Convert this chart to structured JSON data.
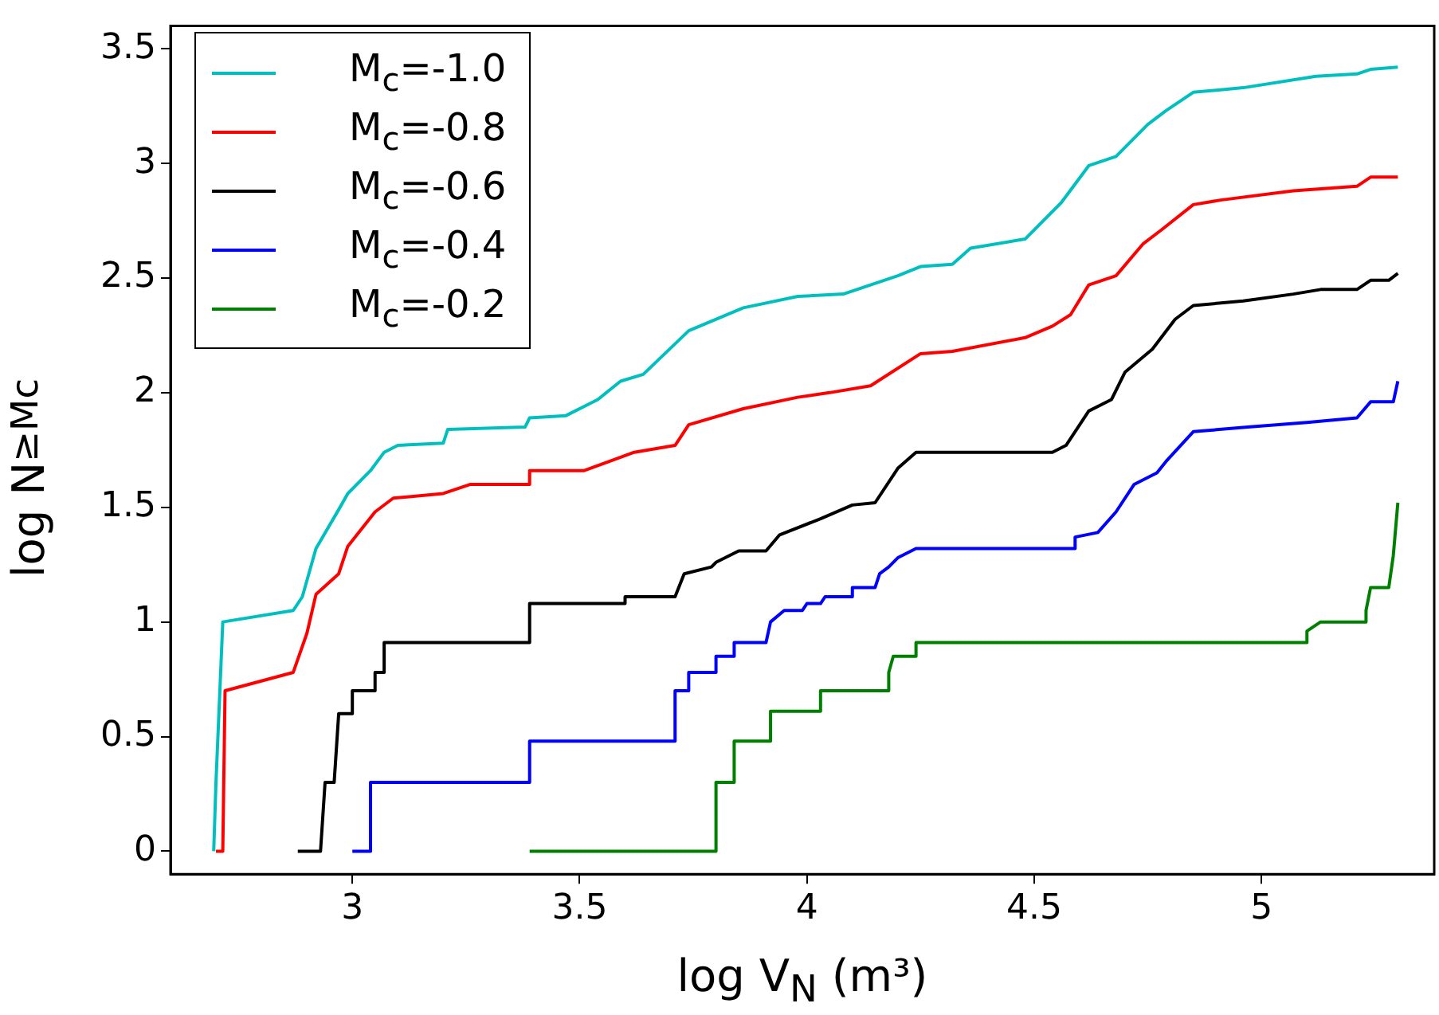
{
  "chart_data": {
    "type": "line",
    "xlabel": "log V$_{N}$ (m³)",
    "ylabel": "log N$_{≥Mc}$",
    "xlim": [
      2.6,
      5.38
    ],
    "ylim": [
      -0.1,
      3.6
    ],
    "xticks": [
      3,
      3.5,
      4,
      4.5,
      5
    ],
    "yticks": [
      0,
      0.5,
      1,
      1.5,
      2,
      2.5,
      3,
      3.5
    ],
    "legend": "top left",
    "marker": "none",
    "line_style": "solid",
    "series": [
      {
        "name": "M$_{c}$=-1.0",
        "color": "#00bfbf",
        "x": [
          2.695,
          2.7,
          2.715,
          2.87,
          2.89,
          2.92,
          2.97,
          2.99,
          3.04,
          3.07,
          3.1,
          3.2,
          3.21,
          3.38,
          3.39,
          3.47,
          3.54,
          3.59,
          3.64,
          3.74,
          3.86,
          3.98,
          4.08,
          4.2,
          4.25,
          4.32,
          4.36,
          4.48,
          4.56,
          4.62,
          4.68,
          4.75,
          4.79,
          4.85,
          4.96,
          5.12,
          5.21,
          5.24,
          5.3
        ],
        "values": [
          0,
          0.3,
          1,
          1.05,
          1.11,
          1.32,
          1.49,
          1.56,
          1.66,
          1.74,
          1.77,
          1.78,
          1.84,
          1.85,
          1.89,
          1.9,
          1.97,
          2.05,
          2.08,
          2.27,
          2.37,
          2.42,
          2.43,
          2.51,
          2.55,
          2.56,
          2.63,
          2.67,
          2.83,
          2.99,
          3.03,
          3.17,
          3.23,
          3.31,
          3.33,
          3.38,
          3.39,
          3.41,
          3.42
        ]
      },
      {
        "name": "M$_{c}$=-0.8",
        "color": "#ff0000",
        "x": [
          2.7,
          2.715,
          2.72,
          2.87,
          2.9,
          2.92,
          2.97,
          2.99,
          3.05,
          3.09,
          3.2,
          3.26,
          3.39,
          3.39,
          3.51,
          3.62,
          3.71,
          3.74,
          3.86,
          3.98,
          4.05,
          4.14,
          4.25,
          4.32,
          4.48,
          4.54,
          4.58,
          4.62,
          4.68,
          4.74,
          4.78,
          4.85,
          4.91,
          5.07,
          5.21,
          5.24,
          5.3
        ],
        "values": [
          0,
          0,
          0.7,
          0.78,
          0.95,
          1.12,
          1.21,
          1.33,
          1.48,
          1.54,
          1.56,
          1.6,
          1.6,
          1.66,
          1.66,
          1.74,
          1.77,
          1.86,
          1.93,
          1.98,
          2,
          2.03,
          2.17,
          2.18,
          2.24,
          2.29,
          2.34,
          2.47,
          2.51,
          2.65,
          2.71,
          2.82,
          2.84,
          2.88,
          2.9,
          2.94,
          2.94
        ]
      },
      {
        "name": "M$_{c}$=-0.6",
        "color": "#000000",
        "x": [
          2.88,
          2.93,
          2.94,
          2.96,
          2.97,
          3.0,
          3.0,
          3.05,
          3.05,
          3.07,
          3.07,
          3.39,
          3.39,
          3.6,
          3.6,
          3.71,
          3.73,
          3.79,
          3.8,
          3.85,
          3.91,
          3.94,
          4.03,
          4.1,
          4.15,
          4.2,
          4.24,
          4.54,
          4.57,
          4.62,
          4.67,
          4.7,
          4.76,
          4.81,
          4.85,
          4.96,
          5.07,
          5.13,
          5.21,
          5.24,
          5.28,
          5.3
        ],
        "values": [
          0,
          0,
          0.3,
          0.3,
          0.6,
          0.6,
          0.7,
          0.7,
          0.78,
          0.78,
          0.91,
          0.91,
          1.08,
          1.08,
          1.11,
          1.11,
          1.21,
          1.24,
          1.26,
          1.31,
          1.31,
          1.38,
          1.45,
          1.51,
          1.52,
          1.67,
          1.74,
          1.74,
          1.77,
          1.92,
          1.97,
          2.09,
          2.19,
          2.32,
          2.38,
          2.4,
          2.43,
          2.45,
          2.45,
          2.49,
          2.49,
          2.52
        ]
      },
      {
        "name": "M$_{c}$=-0.4",
        "color": "#0000ff",
        "x": [
          3.0,
          3.04,
          3.04,
          3.39,
          3.39,
          3.71,
          3.71,
          3.74,
          3.74,
          3.8,
          3.8,
          3.84,
          3.84,
          3.91,
          3.92,
          3.95,
          3.99,
          4.0,
          4.03,
          4.04,
          4.1,
          4.1,
          4.15,
          4.16,
          4.18,
          4.2,
          4.24,
          4.59,
          4.59,
          4.64,
          4.68,
          4.72,
          4.77,
          4.79,
          4.85,
          4.97,
          5.1,
          5.21,
          5.24,
          5.29,
          5.3
        ],
        "values": [
          0,
          0,
          0.3,
          0.3,
          0.48,
          0.48,
          0.7,
          0.7,
          0.78,
          0.78,
          0.85,
          0.85,
          0.91,
          0.91,
          1,
          1.05,
          1.05,
          1.08,
          1.08,
          1.11,
          1.11,
          1.15,
          1.15,
          1.21,
          1.24,
          1.28,
          1.32,
          1.32,
          1.37,
          1.39,
          1.48,
          1.6,
          1.65,
          1.7,
          1.83,
          1.85,
          1.87,
          1.89,
          1.96,
          1.96,
          2.05
        ]
      },
      {
        "name": "M$_{c}$=-0.2",
        "color": "#008000",
        "x": [
          3.39,
          3.8,
          3.8,
          3.84,
          3.84,
          3.92,
          3.92,
          4.03,
          4.03,
          4.18,
          4.18,
          4.19,
          4.24,
          4.24,
          5.1,
          5.1,
          5.13,
          5.23,
          5.23,
          5.24,
          5.28,
          5.29,
          5.3
        ],
        "values": [
          0,
          0,
          0.3,
          0.3,
          0.48,
          0.48,
          0.61,
          0.61,
          0.7,
          0.7,
          0.78,
          0.85,
          0.85,
          0.91,
          0.91,
          0.96,
          1,
          1,
          1.05,
          1.15,
          1.15,
          1.29,
          1.52
        ]
      }
    ]
  }
}
